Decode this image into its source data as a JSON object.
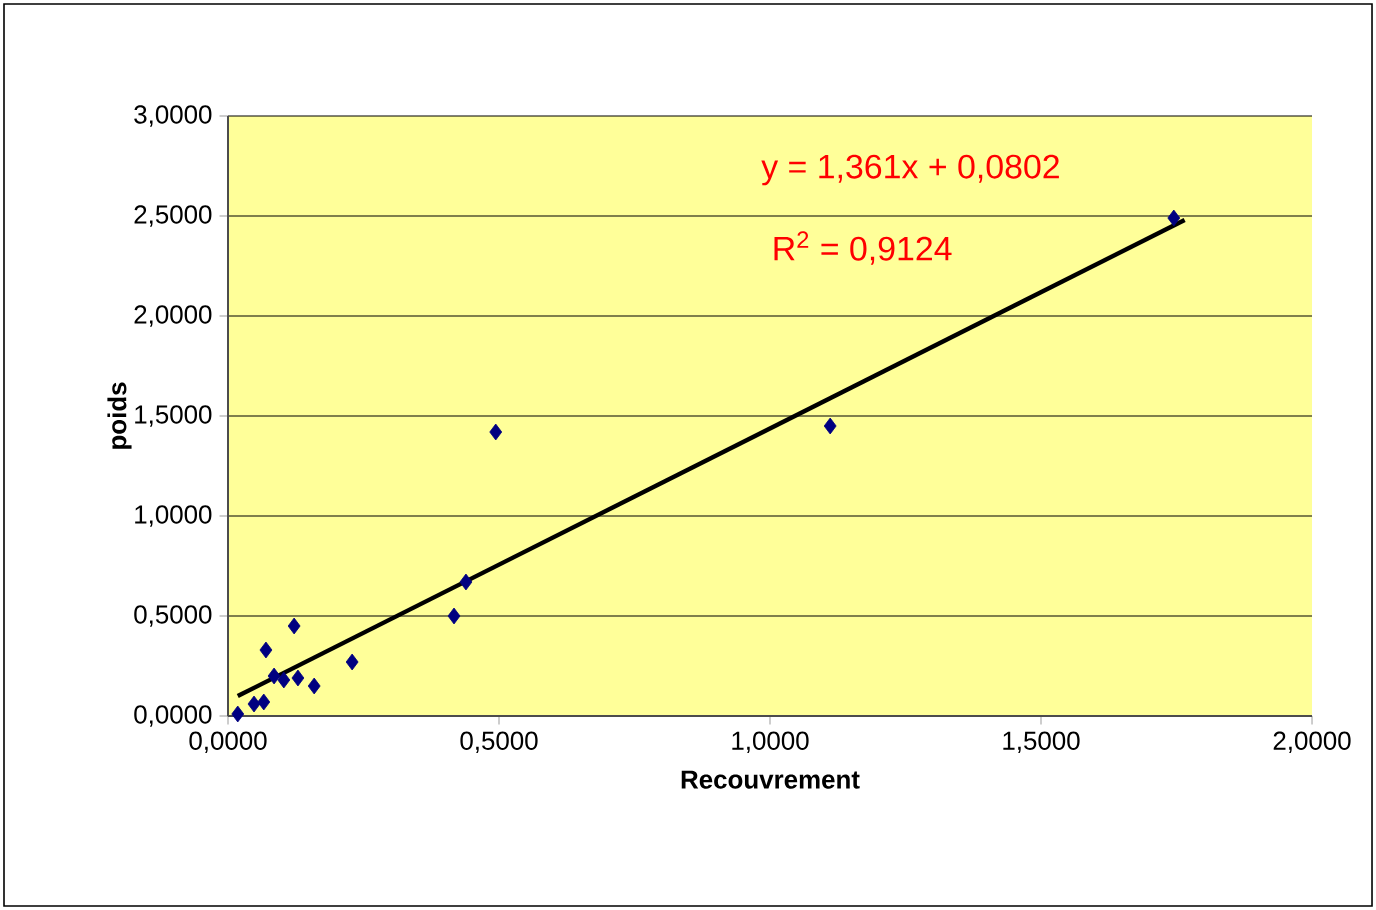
{
  "chart_data": {
    "type": "scatter",
    "xlabel": "Recouvrement",
    "ylabel": "poids",
    "xlim": [
      0,
      2
    ],
    "ylim": [
      0,
      3
    ],
    "xticks": [
      {
        "value": 0,
        "label": "0,0000"
      },
      {
        "value": 0.5,
        "label": "0,5000"
      },
      {
        "value": 1,
        "label": "1,0000"
      },
      {
        "value": 1.5,
        "label": "1,5000"
      },
      {
        "value": 2,
        "label": "2,0000"
      }
    ],
    "yticks": [
      {
        "value": 0,
        "label": "0,0000"
      },
      {
        "value": 0.5,
        "label": "0,5000"
      },
      {
        "value": 1,
        "label": "1,0000"
      },
      {
        "value": 1.5,
        "label": "1,5000"
      },
      {
        "value": 2,
        "label": "2,0000"
      },
      {
        "value": 2.5,
        "label": "2,5000"
      },
      {
        "value": 3,
        "label": "3,0000"
      }
    ],
    "grid": "y",
    "series": [
      {
        "marker": "diamond",
        "color": "#000080",
        "x": [
          0.018,
          0.048,
          0.066,
          0.07,
          0.085,
          0.103,
          0.122,
          0.129,
          0.159,
          0.229,
          0.417,
          0.439,
          0.494,
          1.111,
          1.745
        ],
        "values": [
          0.01,
          0.06,
          0.07,
          0.33,
          0.2,
          0.18,
          0.45,
          0.19,
          0.15,
          0.27,
          0.5,
          0.67,
          1.42,
          1.45,
          2.49
        ]
      },
      {
        "type": "line",
        "color": "#000000",
        "x": [
          0.018,
          1.765
        ],
        "values": [
          0.1,
          2.48
        ]
      }
    ],
    "annotations": [
      "y = 1,361x + 0,0802",
      "R$^{2}$ = 0,9124"
    ]
  }
}
